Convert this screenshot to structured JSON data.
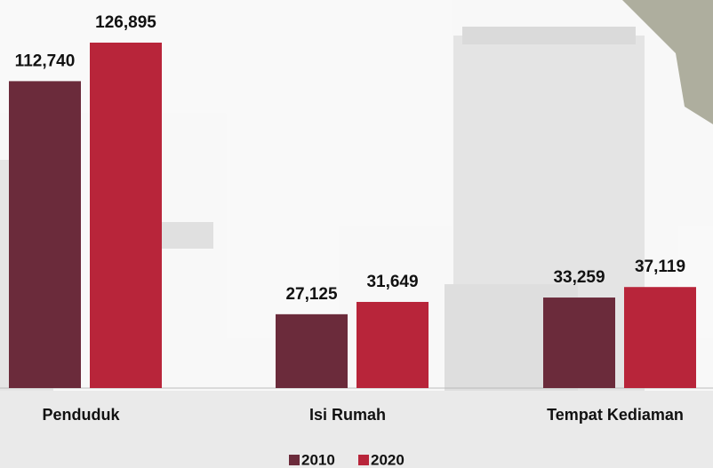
{
  "chart_data": {
    "type": "bar",
    "categories": [
      "Penduduk",
      "Isi Rumah",
      "Tempat Kediaman"
    ],
    "series": [
      {
        "name": "2010",
        "color": "#6b2b3b",
        "values": [
          112740,
          27125,
          33259
        ],
        "value_labels": [
          "112,740",
          "27,125",
          "33,259"
        ]
      },
      {
        "name": "2020",
        "color": "#b8253a",
        "values": [
          126895,
          31649,
          37119
        ],
        "value_labels": [
          "126,895",
          "31,649",
          "37,119"
        ]
      }
    ],
    "legend": "bottom"
  }
}
